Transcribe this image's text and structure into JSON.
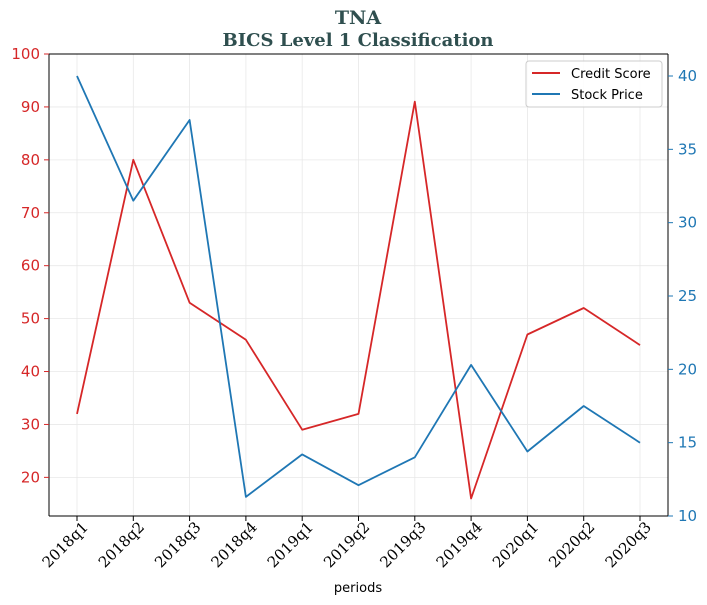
{
  "chart_data": {
    "type": "line",
    "title": "TNA",
    "subtitle": "BICS Level 1 Classification",
    "xlabel": "periods",
    "ylabel_left": "",
    "ylabel_right": "",
    "categories": [
      "2018q1",
      "2018q2",
      "2018q3",
      "2018q4",
      "2019q1",
      "2019q2",
      "2019q3",
      "2019q4",
      "2020q1",
      "2020q2",
      "2020q3"
    ],
    "series": [
      {
        "name": "Credit Score",
        "axis": "left",
        "color": "#d62728",
        "values": [
          32,
          80,
          53,
          46,
          29,
          32,
          91,
          16,
          47,
          52,
          45
        ]
      },
      {
        "name": "Stock Price",
        "axis": "right",
        "color": "#1f77b4",
        "values": [
          40.0,
          31.5,
          37.0,
          11.3,
          14.2,
          12.1,
          14.0,
          20.3,
          14.4,
          17.5,
          15.0
        ]
      }
    ],
    "ylim_left": [
      12.7,
      100
    ],
    "yticks_left": [
      20,
      30,
      40,
      50,
      60,
      70,
      80,
      90,
      100
    ],
    "ylim_right": [
      10,
      41.5
    ],
    "yticks_right": [
      10,
      15,
      20,
      25,
      30,
      35,
      40
    ],
    "grid": true,
    "legend_position": "top-right",
    "left_axis_color": "#d62728",
    "right_axis_color": "#1f77b4"
  }
}
